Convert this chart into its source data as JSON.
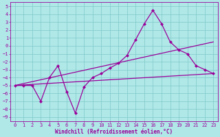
{
  "title": "",
  "xlabel": "Windchill (Refroidissement éolien,°C)",
  "bg_color": "#b0e8e8",
  "line_color": "#990099",
  "grid_color": "#7ec8c8",
  "xlim": [
    -0.5,
    23.5
  ],
  "ylim": [
    -9.5,
    5.5
  ],
  "xticks": [
    0,
    1,
    2,
    3,
    4,
    5,
    6,
    7,
    8,
    9,
    10,
    11,
    12,
    13,
    14,
    15,
    16,
    17,
    18,
    19,
    20,
    21,
    22,
    23
  ],
  "yticks": [
    5,
    4,
    3,
    2,
    1,
    0,
    -1,
    -2,
    -3,
    -4,
    -5,
    -6,
    -7,
    -8,
    -9
  ],
  "line1_x": [
    0,
    1,
    2,
    3,
    4,
    5,
    6,
    7,
    8,
    9,
    10,
    11,
    12,
    13,
    14,
    15,
    16,
    17,
    18,
    19,
    20,
    21,
    22,
    23
  ],
  "line1_y": [
    -5,
    -5,
    -5,
    -7,
    -4,
    -2.5,
    -5.8,
    -8.5,
    -5.2,
    -4,
    -3.5,
    -2.8,
    -2.2,
    -1.2,
    0.8,
    2.8,
    4.5,
    2.8,
    0.5,
    -0.5,
    -1.0,
    -2.5,
    -3.0,
    -3.5
  ],
  "line2_x": [
    0,
    23
  ],
  "line2_y": [
    -5,
    -3.5
  ],
  "line3_x": [
    0,
    23
  ],
  "line3_y": [
    -5,
    0.5
  ],
  "markersize": 2.5,
  "linewidth": 0.9,
  "xlabel_fontsize": 5.5,
  "tick_fontsize": 5.0
}
